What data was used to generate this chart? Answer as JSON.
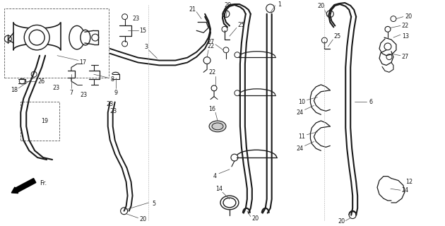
{
  "bg_color": "#ffffff",
  "line_color": "#1a1a1a",
  "fig_width": 6.3,
  "fig_height": 3.2,
  "dpi": 100,
  "font_size": 5.8,
  "gray": "#555555",
  "lgray": "#888888"
}
